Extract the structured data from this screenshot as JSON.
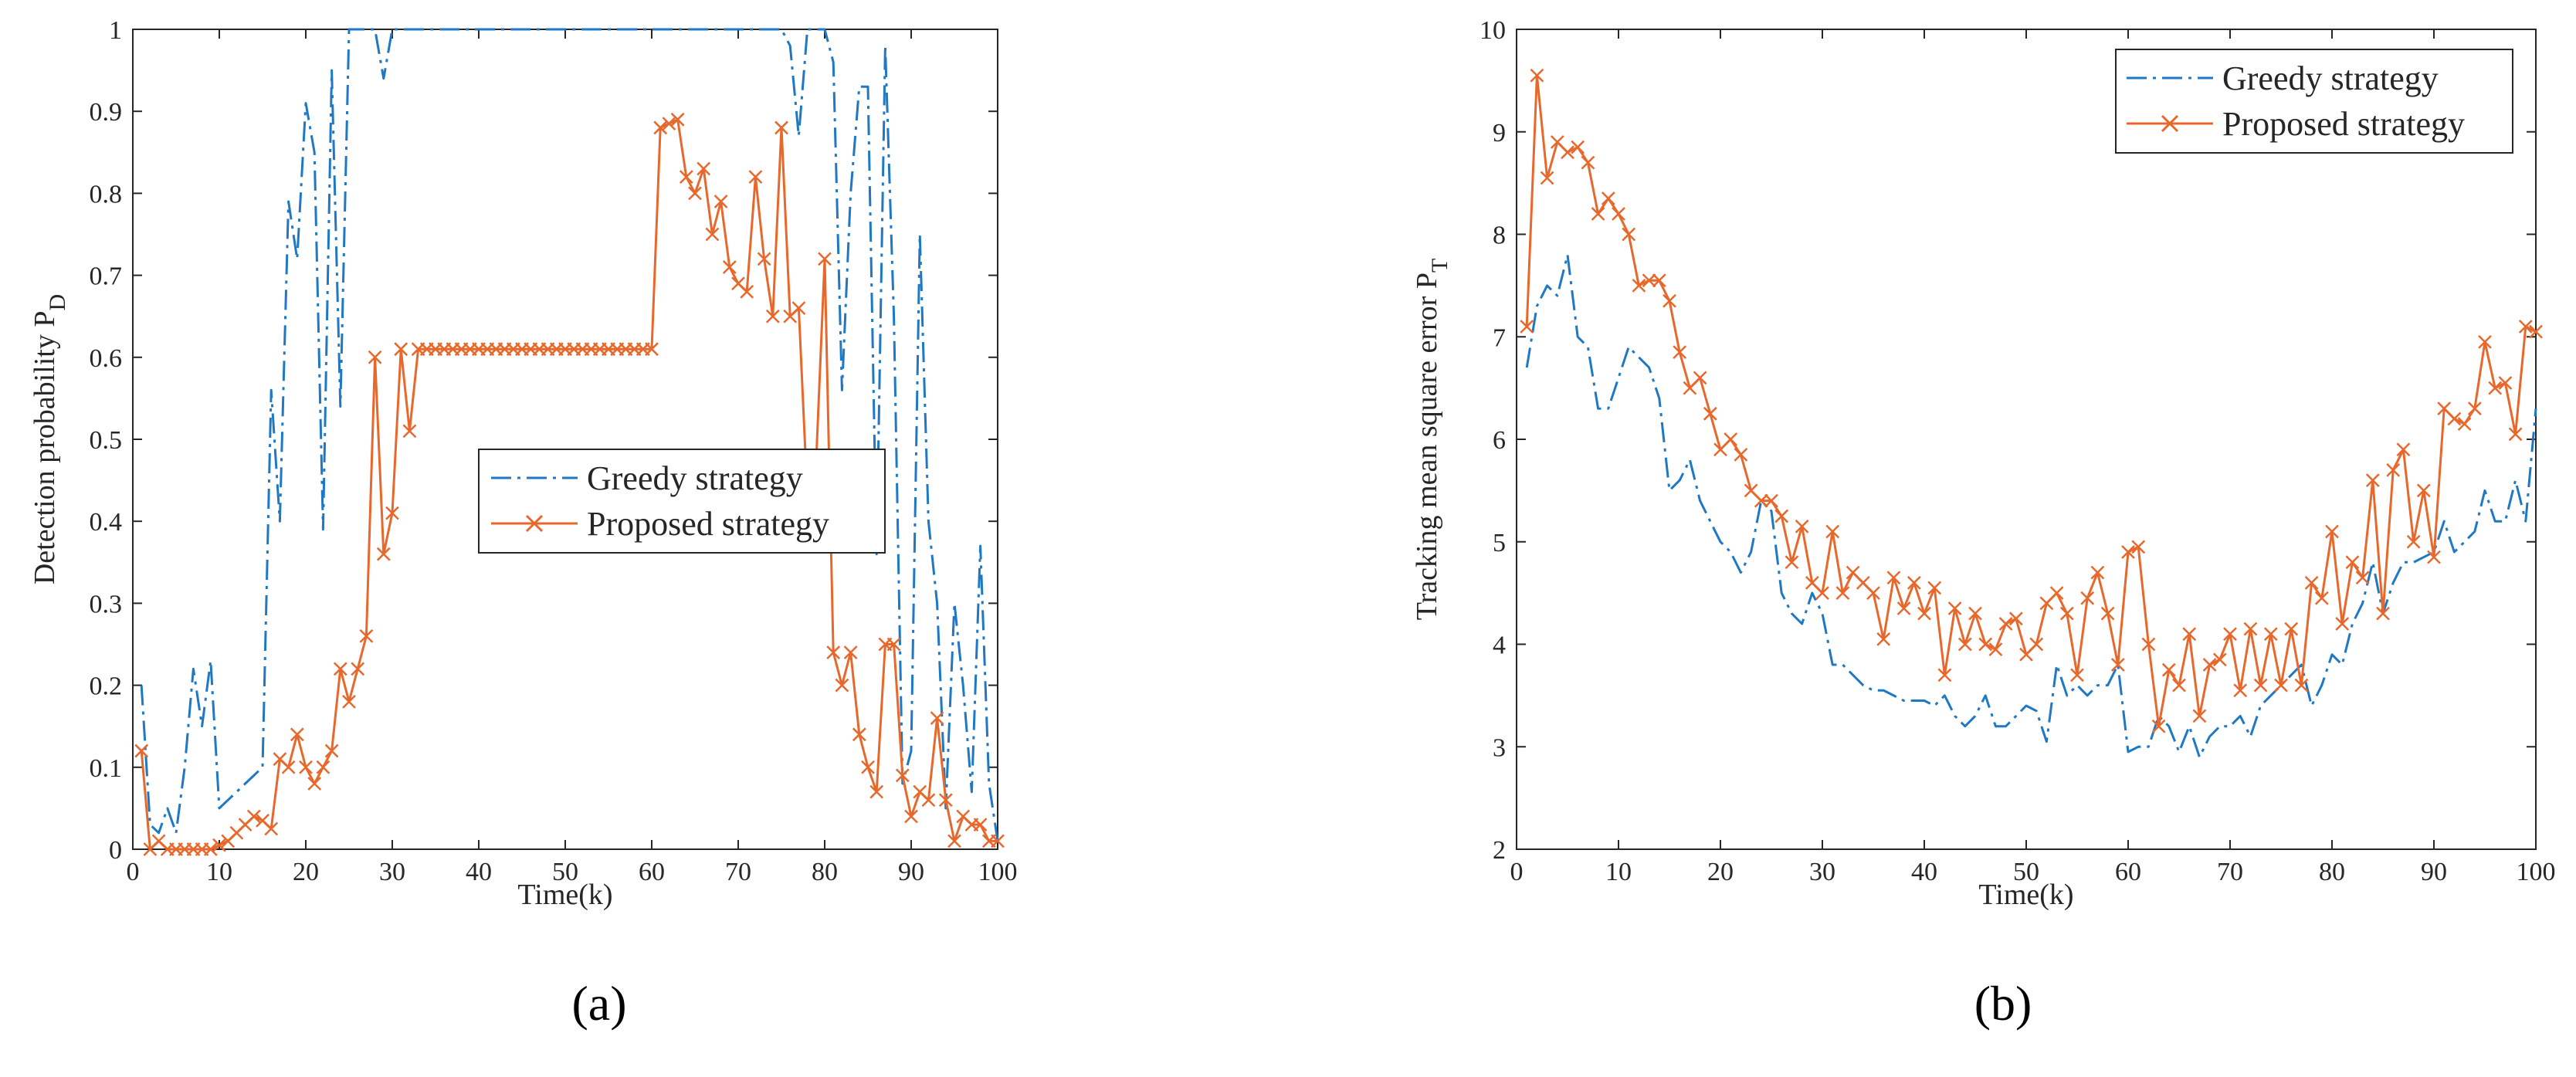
{
  "panel_labels": [
    "(a)",
    "(b)"
  ],
  "colors": {
    "greedy": "#1f78c4",
    "proposed": "#e8682c",
    "axis": "#262626"
  },
  "chart_data": [
    {
      "type": "line",
      "title": "",
      "xlabel": "Time(k)",
      "ylabel": "Detection probability P",
      "ylabel_sub": "D",
      "xlim": [
        0,
        100
      ],
      "ylim": [
        0,
        1
      ],
      "xticks": [
        0,
        10,
        20,
        30,
        40,
        50,
        60,
        70,
        80,
        90,
        100
      ],
      "yticks": [
        0,
        0.1,
        0.2,
        0.3,
        0.4,
        0.5,
        0.6,
        0.7,
        0.8,
        0.9,
        1
      ],
      "ytick_labels": [
        "0",
        "0.1",
        "0.2",
        "0.3",
        "0.4",
        "0.5",
        "0.6",
        "0.7",
        "0.8",
        "0.9",
        "1"
      ],
      "legend": {
        "position": "center",
        "entries": [
          "Greedy strategy",
          "Proposed strategy"
        ]
      },
      "series": [
        {
          "name": "Greedy strategy",
          "style": "dashdot",
          "x": [
            1,
            2,
            3,
            4,
            5,
            6,
            7,
            8,
            9,
            10,
            11,
            12,
            13,
            14,
            15,
            16,
            17,
            18,
            19,
            20,
            21,
            22,
            23,
            24,
            25,
            26,
            27,
            28,
            29,
            30,
            31,
            32,
            33,
            34,
            35,
            36,
            37,
            38,
            39,
            40,
            41,
            42,
            43,
            44,
            45,
            46,
            47,
            48,
            49,
            50,
            51,
            52,
            53,
            54,
            55,
            56,
            57,
            58,
            59,
            60,
            61,
            62,
            63,
            64,
            65,
            66,
            67,
            68,
            69,
            70,
            71,
            72,
            73,
            74,
            75,
            76,
            77,
            78,
            79,
            80,
            81,
            82,
            83,
            84,
            85,
            86,
            87,
            88,
            89,
            90,
            91,
            92,
            93,
            94,
            95,
            96,
            97,
            98,
            99,
            100
          ],
          "values": [
            0.2,
            0.03,
            0.02,
            0.05,
            0.02,
            0.1,
            0.22,
            0.15,
            0.23,
            0.05,
            0.06,
            0.07,
            0.08,
            0.09,
            0.1,
            0.56,
            0.4,
            0.79,
            0.72,
            0.91,
            0.85,
            0.39,
            0.95,
            0.54,
            1.0,
            1.0,
            1.0,
            1.0,
            0.94,
            1.0,
            1.0,
            1.0,
            1.0,
            1.0,
            1.0,
            1.0,
            1.0,
            1.0,
            1.0,
            1.0,
            1.0,
            1.0,
            1.0,
            1.0,
            1.0,
            1.0,
            1.0,
            1.0,
            1.0,
            1.0,
            1.0,
            1.0,
            1.0,
            1.0,
            1.0,
            1.0,
            1.0,
            1.0,
            1.0,
            1.0,
            1.0,
            1.0,
            1.0,
            1.0,
            1.0,
            1.0,
            1.0,
            1.0,
            1.0,
            1.0,
            1.0,
            1.0,
            1.0,
            1.0,
            1.0,
            0.98,
            0.87,
            1.0,
            1.0,
            1.0,
            0.96,
            0.56,
            0.8,
            0.93,
            0.93,
            0.36,
            0.98,
            0.65,
            0.08,
            0.12,
            0.75,
            0.4,
            0.3,
            0.05,
            0.3,
            0.2,
            0.07,
            0.37,
            0.08,
            0.01
          ]
        },
        {
          "name": "Proposed strategy",
          "style": "solid-x",
          "x": [
            1,
            2,
            3,
            4,
            5,
            6,
            7,
            8,
            9,
            10,
            11,
            12,
            13,
            14,
            15,
            16,
            17,
            18,
            19,
            20,
            21,
            22,
            23,
            24,
            25,
            26,
            27,
            28,
            29,
            30,
            31,
            32,
            33,
            34,
            35,
            36,
            37,
            38,
            39,
            40,
            41,
            42,
            43,
            44,
            45,
            46,
            47,
            48,
            49,
            50,
            51,
            52,
            53,
            54,
            55,
            56,
            57,
            58,
            59,
            60,
            61,
            62,
            63,
            64,
            65,
            66,
            67,
            68,
            69,
            70,
            71,
            72,
            73,
            74,
            75,
            76,
            77,
            78,
            79,
            80,
            81,
            82,
            83,
            84,
            85,
            86,
            87,
            88,
            89,
            90,
            91,
            92,
            93,
            94,
            95,
            96,
            97,
            98,
            99,
            100
          ],
          "values": [
            0.12,
            0.0,
            0.01,
            0.0,
            0.0,
            0.0,
            0.0,
            0.0,
            0.0,
            0.005,
            0.01,
            0.02,
            0.03,
            0.04,
            0.035,
            0.025,
            0.11,
            0.1,
            0.14,
            0.1,
            0.08,
            0.1,
            0.12,
            0.22,
            0.18,
            0.22,
            0.26,
            0.6,
            0.36,
            0.41,
            0.61,
            0.51,
            0.61,
            0.61,
            0.61,
            0.61,
            0.61,
            0.61,
            0.61,
            0.61,
            0.61,
            0.61,
            0.61,
            0.61,
            0.61,
            0.61,
            0.61,
            0.61,
            0.61,
            0.61,
            0.61,
            0.61,
            0.61,
            0.61,
            0.61,
            0.61,
            0.61,
            0.61,
            0.61,
            0.61,
            0.88,
            0.885,
            0.89,
            0.82,
            0.8,
            0.83,
            0.75,
            0.79,
            0.71,
            0.69,
            0.68,
            0.82,
            0.72,
            0.65,
            0.88,
            0.65,
            0.66,
            0.43,
            0.47,
            0.72,
            0.24,
            0.2,
            0.24,
            0.14,
            0.1,
            0.07,
            0.25,
            0.25,
            0.09,
            0.04,
            0.07,
            0.06,
            0.16,
            0.06,
            0.01,
            0.04,
            0.03,
            0.03,
            0.01,
            0.01
          ]
        }
      ]
    },
    {
      "type": "line",
      "title": "",
      "xlabel": "Time(k)",
      "ylabel": "Tracking mean square error P",
      "ylabel_sub": "T",
      "xlim": [
        0,
        100
      ],
      "ylim": [
        2,
        10
      ],
      "xticks": [
        0,
        10,
        20,
        30,
        40,
        50,
        60,
        70,
        80,
        90,
        100
      ],
      "yticks": [
        2,
        3,
        4,
        5,
        6,
        7,
        8,
        9,
        10
      ],
      "ytick_labels": [
        "2",
        "3",
        "4",
        "5",
        "6",
        "7",
        "8",
        "9",
        "10"
      ],
      "legend": {
        "position": "top-right",
        "entries": [
          "Greedy strategy",
          "Proposed strategy"
        ]
      },
      "series": [
        {
          "name": "Greedy strategy",
          "style": "dashdot",
          "x": [
            1,
            2,
            3,
            4,
            5,
            6,
            7,
            8,
            9,
            10,
            11,
            12,
            13,
            14,
            15,
            16,
            17,
            18,
            19,
            20,
            21,
            22,
            23,
            24,
            25,
            26,
            27,
            28,
            29,
            30,
            31,
            32,
            33,
            34,
            35,
            36,
            37,
            38,
            39,
            40,
            41,
            42,
            43,
            44,
            45,
            46,
            47,
            48,
            49,
            50,
            51,
            52,
            53,
            54,
            55,
            56,
            57,
            58,
            59,
            60,
            61,
            62,
            63,
            64,
            65,
            66,
            67,
            68,
            69,
            70,
            71,
            72,
            73,
            74,
            75,
            76,
            77,
            78,
            79,
            80,
            81,
            82,
            83,
            84,
            85,
            86,
            87,
            88,
            89,
            90,
            91,
            92,
            93,
            94,
            95,
            96,
            97,
            98,
            99,
            100
          ],
          "values": [
            6.7,
            7.3,
            7.5,
            7.4,
            7.8,
            7.0,
            6.9,
            6.3,
            6.3,
            6.6,
            6.9,
            6.8,
            6.7,
            6.4,
            5.5,
            5.6,
            5.8,
            5.4,
            5.2,
            5.0,
            4.9,
            4.7,
            4.9,
            5.4,
            5.3,
            4.5,
            4.3,
            4.2,
            4.5,
            4.3,
            3.8,
            3.8,
            3.7,
            3.6,
            3.55,
            3.55,
            3.5,
            3.45,
            3.45,
            3.45,
            3.4,
            3.5,
            3.3,
            3.2,
            3.3,
            3.5,
            3.2,
            3.2,
            3.3,
            3.4,
            3.35,
            3.05,
            3.8,
            3.5,
            3.6,
            3.5,
            3.6,
            3.6,
            3.8,
            2.95,
            3.0,
            3.0,
            3.3,
            3.2,
            2.95,
            3.2,
            2.9,
            3.1,
            3.2,
            3.2,
            3.3,
            3.1,
            3.4,
            3.5,
            3.6,
            3.7,
            3.8,
            3.4,
            3.6,
            3.9,
            3.8,
            4.2,
            4.4,
            4.8,
            4.3,
            4.6,
            4.8,
            4.8,
            4.85,
            4.9,
            5.2,
            4.9,
            5.0,
            5.1,
            5.5,
            5.2,
            5.2,
            5.6,
            5.2,
            6.3
          ]
        },
        {
          "name": "Proposed strategy",
          "style": "solid-x",
          "x": [
            1,
            2,
            3,
            4,
            5,
            6,
            7,
            8,
            9,
            10,
            11,
            12,
            13,
            14,
            15,
            16,
            17,
            18,
            19,
            20,
            21,
            22,
            23,
            24,
            25,
            26,
            27,
            28,
            29,
            30,
            31,
            32,
            33,
            34,
            35,
            36,
            37,
            38,
            39,
            40,
            41,
            42,
            43,
            44,
            45,
            46,
            47,
            48,
            49,
            50,
            51,
            52,
            53,
            54,
            55,
            56,
            57,
            58,
            59,
            60,
            61,
            62,
            63,
            64,
            65,
            66,
            67,
            68,
            69,
            70,
            71,
            72,
            73,
            74,
            75,
            76,
            77,
            78,
            79,
            80,
            81,
            82,
            83,
            84,
            85,
            86,
            87,
            88,
            89,
            90,
            91,
            92,
            93,
            94,
            95,
            96,
            97,
            98,
            99,
            100
          ],
          "values": [
            7.1,
            9.55,
            8.55,
            8.9,
            8.8,
            8.85,
            8.7,
            8.2,
            8.35,
            8.2,
            8.0,
            7.5,
            7.55,
            7.55,
            7.35,
            6.85,
            6.5,
            6.6,
            6.25,
            5.9,
            6.0,
            5.85,
            5.5,
            5.4,
            5.4,
            5.25,
            4.8,
            5.15,
            4.6,
            4.5,
            5.1,
            4.5,
            4.7,
            4.6,
            4.5,
            4.05,
            4.65,
            4.35,
            4.6,
            4.3,
            4.55,
            3.7,
            4.35,
            4.0,
            4.3,
            4.0,
            3.95,
            4.2,
            4.25,
            3.9,
            4.0,
            4.4,
            4.5,
            4.3,
            3.7,
            4.45,
            4.7,
            4.3,
            3.8,
            4.9,
            4.95,
            4.0,
            3.2,
            3.75,
            3.6,
            4.1,
            3.3,
            3.8,
            3.85,
            4.1,
            3.55,
            4.15,
            3.6,
            4.1,
            3.6,
            4.15,
            3.6,
            4.6,
            4.45,
            5.1,
            4.2,
            4.8,
            4.65,
            5.6,
            4.3,
            5.7,
            5.9,
            5.0,
            5.5,
            4.85,
            6.3,
            6.2,
            6.15,
            6.3,
            6.95,
            6.5,
            6.55,
            6.05,
            7.1,
            7.05
          ]
        }
      ]
    }
  ]
}
